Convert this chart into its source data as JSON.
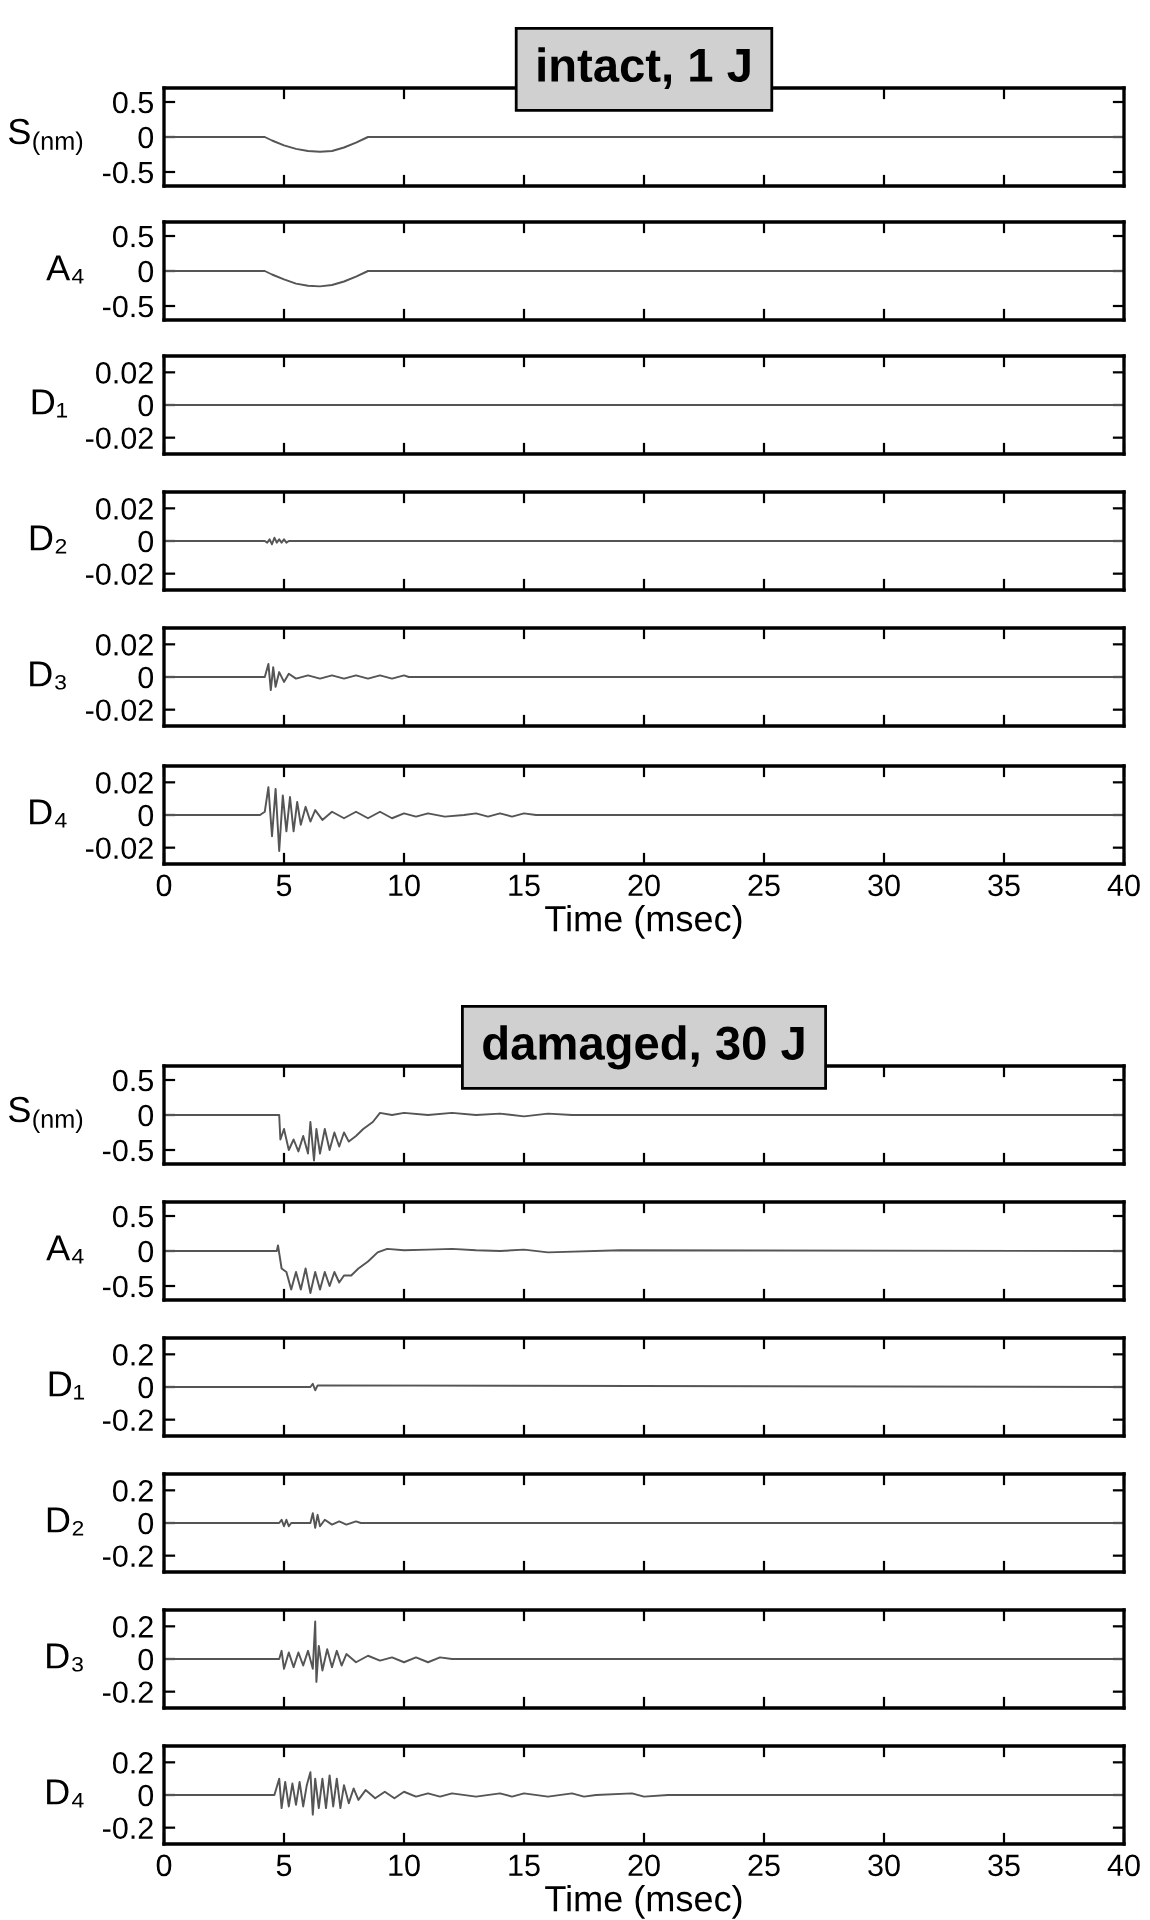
{
  "chart_data": [
    {
      "type": "line",
      "title": "intact, 1 J",
      "ylabel": "S$_{(nm)}$",
      "xlim": [
        0,
        40
      ],
      "xticks": [
        0,
        5,
        10,
        15,
        20,
        25,
        30,
        35,
        40
      ],
      "ylim": [
        -0.7,
        0.7
      ],
      "yticks": [
        -0.5,
        0,
        0.5
      ],
      "tick_labels": "y",
      "series": [
        {
          "color": "#555555",
          "x": [
            0,
            4.2,
            4.5,
            5,
            5.5,
            6,
            6.5,
            7,
            7.5,
            8,
            8.5,
            40
          ],
          "values": [
            0,
            0,
            -0.05,
            -0.12,
            -0.17,
            -0.2,
            -0.21,
            -0.2,
            -0.15,
            -0.08,
            0,
            0
          ]
        }
      ]
    },
    {
      "type": "line",
      "ylabel": "A₄",
      "xlim": [
        0,
        40
      ],
      "xticks": [
        0,
        5,
        10,
        15,
        20,
        25,
        30,
        35,
        40
      ],
      "ylim": [
        -0.7,
        0.7
      ],
      "yticks": [
        -0.5,
        0,
        0.5
      ],
      "tick_labels": "y",
      "series": [
        {
          "color": "#555555",
          "x": [
            0,
            4.2,
            4.5,
            5,
            5.5,
            6,
            6.5,
            7,
            7.5,
            8,
            8.5,
            40
          ],
          "values": [
            0,
            0,
            -0.05,
            -0.12,
            -0.18,
            -0.21,
            -0.22,
            -0.2,
            -0.15,
            -0.08,
            0,
            0
          ]
        }
      ]
    },
    {
      "type": "line",
      "ylabel": "D₁",
      "xlim": [
        0,
        40
      ],
      "xticks": [
        0,
        5,
        10,
        15,
        20,
        25,
        30,
        35,
        40
      ],
      "ylim": [
        -0.03,
        0.03
      ],
      "yticks": [
        -0.02,
        0,
        0.02
      ],
      "tick_labels": "y",
      "series": [
        {
          "color": "#555555",
          "x": [
            0,
            40
          ],
          "values": [
            0,
            0
          ]
        }
      ]
    },
    {
      "type": "line",
      "ylabel": "D₂",
      "xlim": [
        0,
        40
      ],
      "xticks": [
        0,
        5,
        10,
        15,
        20,
        25,
        30,
        35,
        40
      ],
      "ylim": [
        -0.03,
        0.03
      ],
      "yticks": [
        -0.02,
        0,
        0.02
      ],
      "tick_labels": "y",
      "series": [
        {
          "color": "#555555",
          "x": [
            0,
            4.2,
            4.3,
            4.4,
            4.5,
            4.6,
            4.7,
            4.8,
            4.9,
            5.0,
            5.1,
            5.2,
            40
          ],
          "values": [
            0,
            0,
            -0.001,
            0.001,
            -0.002,
            0.002,
            -0.001,
            0.001,
            -0.001,
            0.001,
            -0.001,
            0,
            0
          ]
        }
      ]
    },
    {
      "type": "line",
      "ylabel": "D₃",
      "xlim": [
        0,
        40
      ],
      "xticks": [
        0,
        5,
        10,
        15,
        20,
        25,
        30,
        35,
        40
      ],
      "ylim": [
        -0.03,
        0.03
      ],
      "yticks": [
        -0.02,
        0,
        0.02
      ],
      "tick_labels": "y",
      "series": [
        {
          "color": "#555555",
          "x": [
            0,
            4.2,
            4.35,
            4.45,
            4.55,
            4.65,
            4.8,
            5.0,
            5.2,
            5.5,
            6,
            6.5,
            7,
            7.5,
            8,
            8.5,
            9,
            9.5,
            10,
            10.2,
            40
          ],
          "values": [
            0,
            0,
            0.008,
            -0.008,
            0.006,
            -0.006,
            0.003,
            -0.003,
            0.002,
            -0.001,
            0.001,
            -0.001,
            0.001,
            -0.001,
            0.001,
            -0.001,
            0.001,
            -0.001,
            0.001,
            0,
            0
          ]
        }
      ]
    },
    {
      "type": "line",
      "ylabel": "D₄",
      "xlabel": "Time (msec)",
      "xlim": [
        0,
        40
      ],
      "xticks": [
        0,
        5,
        10,
        15,
        20,
        25,
        30,
        35,
        40
      ],
      "ylim": [
        -0.03,
        0.03
      ],
      "yticks": [
        -0.02,
        0,
        0.02
      ],
      "series": [
        {
          "color": "#555555",
          "x": [
            0,
            4,
            4.2,
            4.35,
            4.5,
            4.65,
            4.8,
            4.95,
            5.1,
            5.25,
            5.4,
            5.55,
            5.7,
            5.9,
            6.1,
            6.3,
            6.6,
            7,
            7.5,
            8,
            8.5,
            9,
            9.5,
            10,
            10.5,
            11,
            11.7,
            12.5,
            13,
            13.5,
            14,
            14.5,
            15,
            15.5,
            16.7,
            19,
            19.5,
            40
          ],
          "values": [
            0,
            0,
            0.002,
            0.017,
            -0.013,
            0.016,
            -0.022,
            0.012,
            -0.01,
            0.011,
            -0.01,
            0.008,
            -0.006,
            0.005,
            -0.004,
            0.003,
            -0.003,
            0.002,
            -0.002,
            0.002,
            -0.002,
            0.002,
            -0.002,
            0.001,
            -0.001,
            0.001,
            -0.001,
            0,
            0.001,
            -0.001,
            0.001,
            -0.001,
            0.001,
            0,
            0,
            0,
            0,
            0
          ]
        }
      ]
    },
    {
      "type": "line",
      "title": "damaged, 30 J",
      "ylabel": "S$_{(nm)}$",
      "xlim": [
        0,
        40
      ],
      "xticks": [
        0,
        5,
        10,
        15,
        20,
        25,
        30,
        35,
        40
      ],
      "ylim": [
        -0.7,
        0.7
      ],
      "yticks": [
        -0.5,
        0,
        0.5
      ],
      "tick_labels": "y",
      "series": [
        {
          "color": "#555555",
          "x": [
            0,
            4.8,
            4.85,
            5.0,
            5.2,
            5.4,
            5.6,
            5.8,
            6.0,
            6.1,
            6.25,
            6.35,
            6.5,
            6.7,
            6.9,
            7.1,
            7.3,
            7.5,
            7.7,
            8.0,
            8.3,
            8.7,
            9.0,
            9.5,
            10,
            11,
            12,
            13,
            14,
            15,
            16,
            17,
            40
          ],
          "values": [
            0,
            0,
            -0.35,
            -0.2,
            -0.5,
            -0.35,
            -0.52,
            -0.3,
            -0.55,
            -0.1,
            -0.65,
            -0.2,
            -0.55,
            -0.2,
            -0.5,
            -0.25,
            -0.45,
            -0.25,
            -0.38,
            -0.3,
            -0.2,
            -0.1,
            0.03,
            0,
            0.03,
            0,
            0.03,
            0,
            0.02,
            -0.02,
            0.02,
            0,
            0
          ]
        }
      ]
    },
    {
      "type": "line",
      "ylabel": "A₄",
      "xlim": [
        0,
        40
      ],
      "xticks": [
        0,
        5,
        10,
        15,
        20,
        25,
        30,
        35,
        40
      ],
      "ylim": [
        -0.7,
        0.7
      ],
      "yticks": [
        -0.5,
        0,
        0.5
      ],
      "tick_labels": "y",
      "series": [
        {
          "color": "#555555",
          "x": [
            0,
            4.7,
            4.75,
            4.9,
            5.1,
            5.3,
            5.5,
            5.7,
            5.9,
            6.1,
            6.3,
            6.5,
            6.7,
            6.9,
            7.1,
            7.3,
            7.5,
            7.8,
            8.1,
            8.5,
            8.9,
            9.3,
            10,
            11,
            12,
            13,
            14,
            15,
            16,
            19,
            40
          ],
          "values": [
            0,
            0,
            0.08,
            -0.25,
            -0.3,
            -0.55,
            -0.3,
            -0.55,
            -0.25,
            -0.6,
            -0.3,
            -0.55,
            -0.3,
            -0.5,
            -0.3,
            -0.45,
            -0.35,
            -0.35,
            -0.25,
            -0.15,
            -0.02,
            0.03,
            0.01,
            0.02,
            0.03,
            0.01,
            0,
            0.02,
            -0.02,
            0.01,
            0
          ]
        }
      ]
    },
    {
      "type": "line",
      "ylabel": "D₁",
      "xlim": [
        0,
        40
      ],
      "xticks": [
        0,
        5,
        10,
        15,
        20,
        25,
        30,
        35,
        40
      ],
      "ylim": [
        -0.3,
        0.3
      ],
      "yticks": [
        -0.2,
        0,
        0.2
      ],
      "tick_labels": "y",
      "series": [
        {
          "color": "#555555",
          "x": [
            0,
            6.1,
            6.2,
            6.3,
            6.4,
            40
          ],
          "values": [
            0,
            0,
            0.02,
            -0.02,
            0.01,
            0
          ]
        }
      ]
    },
    {
      "type": "line",
      "ylabel": "D₂",
      "xlim": [
        0,
        40
      ],
      "xticks": [
        0,
        5,
        10,
        15,
        20,
        25,
        30,
        35,
        40
      ],
      "ylim": [
        -0.3,
        0.3
      ],
      "yticks": [
        -0.2,
        0,
        0.2
      ],
      "tick_labels": "y",
      "series": [
        {
          "color": "#555555",
          "x": [
            0,
            4.8,
            4.9,
            5.0,
            5.1,
            5.2,
            5.3,
            6.1,
            6.2,
            6.3,
            6.4,
            6.5,
            6.7,
            7.0,
            7.3,
            7.6,
            8.0,
            8.2,
            40
          ],
          "values": [
            0,
            0,
            0.02,
            -0.02,
            0.02,
            -0.02,
            0,
            0,
            0.06,
            -0.03,
            0.05,
            -0.02,
            0.02,
            -0.01,
            0.01,
            -0.01,
            0.01,
            0,
            0
          ]
        }
      ]
    },
    {
      "type": "line",
      "ylabel": "D₃",
      "xlim": [
        0,
        40
      ],
      "xticks": [
        0,
        5,
        10,
        15,
        20,
        25,
        30,
        35,
        40
      ],
      "ylim": [
        -0.3,
        0.3
      ],
      "yticks": [
        -0.2,
        0,
        0.2
      ],
      "tick_labels": "y",
      "series": [
        {
          "color": "#555555",
          "x": [
            0,
            4.8,
            4.9,
            5.0,
            5.2,
            5.4,
            5.6,
            5.8,
            6.0,
            6.2,
            6.3,
            6.35,
            6.45,
            6.6,
            6.8,
            7.0,
            7.2,
            7.4,
            7.6,
            8,
            8.5,
            9,
            9.5,
            10,
            10.5,
            11,
            11.5,
            12,
            40
          ],
          "values": [
            0,
            0,
            0.05,
            -0.06,
            0.04,
            -0.05,
            0.04,
            -0.04,
            0.05,
            -0.06,
            0.23,
            -0.14,
            0.08,
            -0.07,
            0.06,
            -0.05,
            0.05,
            -0.04,
            0.03,
            -0.02,
            0.02,
            -0.01,
            0.01,
            -0.02,
            0.01,
            -0.02,
            0.01,
            0,
            0
          ]
        }
      ]
    },
    {
      "type": "line",
      "ylabel": "D₄",
      "xlabel": "Time (msec)",
      "xlim": [
        0,
        40
      ],
      "xticks": [
        0,
        5,
        10,
        15,
        20,
        25,
        30,
        35,
        40
      ],
      "ylim": [
        -0.3,
        0.3
      ],
      "yticks": [
        -0.2,
        0,
        0.2
      ],
      "series": [
        {
          "color": "#555555",
          "x": [
            0,
            4.6,
            4.8,
            4.9,
            5.05,
            5.2,
            5.35,
            5.5,
            5.65,
            5.8,
            5.95,
            6.1,
            6.2,
            6.3,
            6.45,
            6.6,
            6.75,
            6.9,
            7.05,
            7.2,
            7.35,
            7.5,
            7.7,
            7.9,
            8.1,
            8.4,
            8.8,
            9.2,
            9.6,
            10,
            10.5,
            11,
            11.5,
            12,
            13,
            14,
            14.5,
            15,
            16,
            17,
            17.5,
            18,
            19.5,
            20,
            21,
            40
          ],
          "values": [
            0,
            0,
            0.1,
            -0.08,
            0.08,
            -0.07,
            0.07,
            -0.06,
            0.08,
            -0.07,
            0.06,
            0.14,
            -0.12,
            0.1,
            -0.08,
            0.1,
            -0.08,
            0.12,
            -0.07,
            0.1,
            -0.08,
            0.06,
            -0.05,
            0.04,
            -0.03,
            0.03,
            -0.02,
            0.02,
            -0.02,
            0.02,
            -0.01,
            0.01,
            -0.01,
            0.01,
            -0.01,
            0.01,
            -0.01,
            0.01,
            -0.01,
            0.01,
            -0.01,
            0,
            0.01,
            -0.01,
            0,
            0
          ]
        }
      ]
    }
  ]
}
